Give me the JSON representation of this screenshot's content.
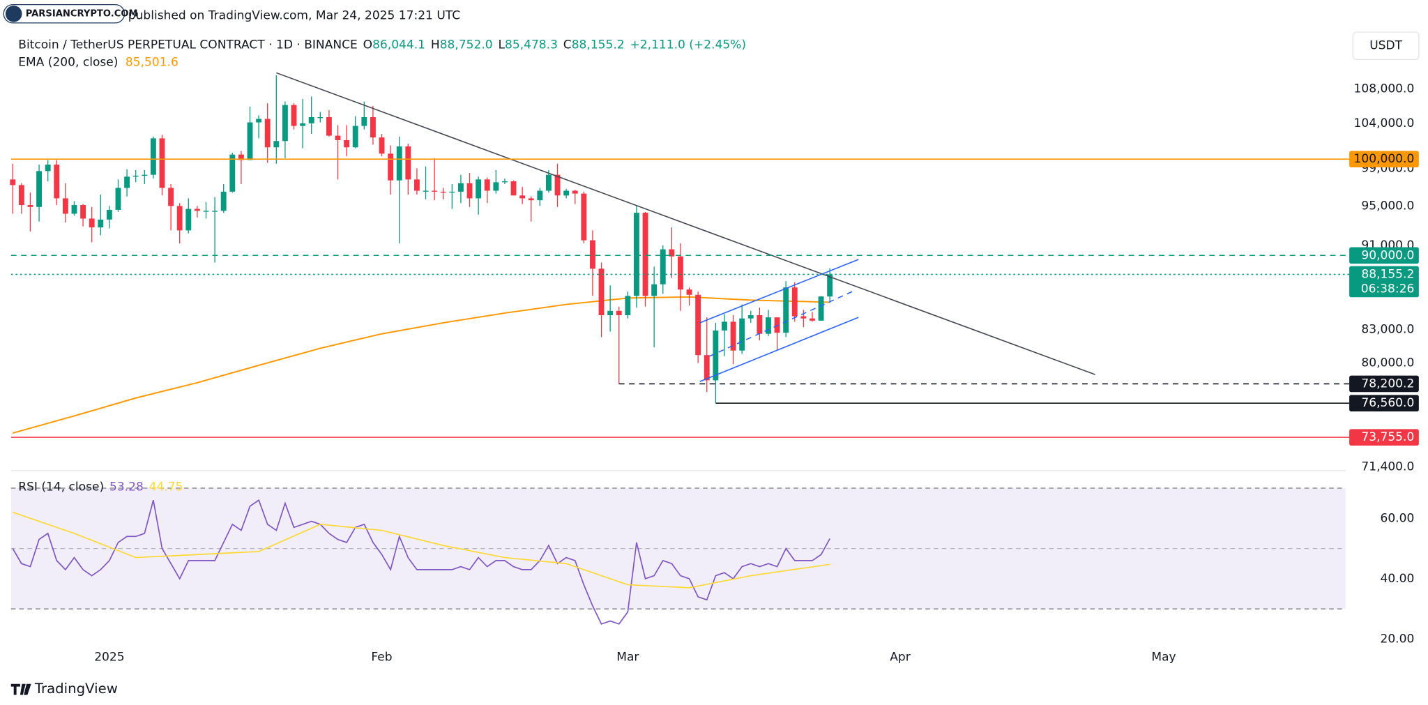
{
  "header": {
    "published": "published on TradingView.com, Mar 24, 2025 17:21 UTC",
    "logo": "PARSIANCRYPTO.COM",
    "footer": "TradingView"
  },
  "chart_data": [
    {
      "type": "candlestick",
      "title": "Bitcoin / TetherUS PERPETUAL CONTRACT · 1D · BINANCE",
      "ohlc_legend": [
        {
          "key": "O",
          "value": "86,044.1"
        },
        {
          "key": "H",
          "value": "88,752.0"
        },
        {
          "key": "L",
          "value": "85,478.3"
        },
        {
          "key": "C",
          "value": "88,155.2"
        }
      ],
      "change": "+2,111.0 (+2.45%)",
      "legend_color": "#089981",
      "currency": "USDT",
      "up_color": "#089981",
      "down_color": "#f23645",
      "log_scale": true,
      "grid": false,
      "xlim": [
        -0.2,
        151.7
      ],
      "ylim": [
        71260,
        115260
      ],
      "yticks": [
        {
          "value": 108000,
          "label": "108,000.0"
        },
        {
          "value": 104000,
          "label": "104,000.0"
        },
        {
          "value": 99000,
          "label": "99,000.0"
        },
        {
          "value": 95000,
          "label": "95,000.0"
        },
        {
          "value": 91000,
          "label": "91,000.0"
        },
        {
          "value": 83000,
          "label": "83,000.0"
        },
        {
          "value": 80000,
          "label": "80,000.0"
        },
        {
          "value": 71400,
          "label": "71,400.0"
        }
      ],
      "open": [
        97800,
        97200,
        95100,
        94900,
        98700,
        99400,
        95800,
        94200,
        95100,
        93700,
        92800,
        93600,
        94600,
        96900,
        98100,
        98200,
        98300,
        102300,
        96900,
        95000,
        92500,
        94700,
        94500,
        94500,
        94500,
        96500,
        100500,
        99900,
        104100,
        104500,
        101300,
        102000,
        106100,
        103700,
        104000,
        104700,
        104700,
        102600,
        102100,
        101300,
        103700,
        104700,
        102400,
        100600,
        97700,
        101400,
        97800,
        96600,
        96600,
        96500,
        96400,
        96500,
        97400,
        95800,
        97800,
        96600,
        97500,
        97600,
        96100,
        95800,
        95600,
        96600,
        98300,
        96100,
        96600,
        96300,
        91500,
        88700,
        84300,
        84700,
        84300,
        86100,
        94300,
        86100,
        87200,
        90600,
        89900,
        86700,
        86200,
        80700,
        78500,
        82900,
        83700,
        81100,
        84000,
        84300,
        82600,
        84100,
        82700,
        86900,
        84200,
        84000,
        83800,
        86044.1
      ],
      "high": [
        99500,
        97400,
        96400,
        99400,
        99900,
        99900,
        97400,
        95500,
        95200,
        94900,
        96200,
        95000,
        97800,
        98900,
        98800,
        98800,
        102500,
        102700,
        97300,
        95300,
        95800,
        95000,
        95400,
        95900,
        97300,
        100700,
        100900,
        105900,
        104900,
        106300,
        109600,
        106500,
        106300,
        106800,
        107100,
        105300,
        105500,
        103800,
        103800,
        104800,
        106500,
        106000,
        102800,
        101500,
        102500,
        101700,
        99000,
        99200,
        100100,
        96900,
        97300,
        98300,
        98500,
        98100,
        98000,
        98800,
        97900,
        97700,
        97000,
        96000,
        96900,
        98800,
        99500,
        96800,
        96700,
        96500,
        92500,
        89300,
        87100,
        85100,
        86500,
        95000,
        94400,
        88900,
        91000,
        92800,
        91200,
        86900,
        86500,
        84100,
        83600,
        84400,
        84300,
        85300,
        84700,
        85000,
        84800,
        84100,
        87500,
        87400,
        84800,
        84600,
        86100,
        88752
      ],
      "low": [
        94200,
        94200,
        92400,
        93400,
        97600,
        95100,
        93300,
        94000,
        92900,
        91300,
        92000,
        92700,
        94400,
        96000,
        97500,
        97300,
        97900,
        96100,
        92500,
        91200,
        92200,
        93800,
        93700,
        89300,
        94300,
        96400,
        97300,
        99900,
        102300,
        99600,
        99500,
        100100,
        103300,
        101200,
        102800,
        104100,
        102500,
        97800,
        100300,
        101200,
        103300,
        101600,
        100300,
        96200,
        91200,
        96200,
        96200,
        95700,
        95600,
        95700,
        94700,
        95300,
        94900,
        94100,
        95300,
        96300,
        97300,
        96100,
        95200,
        93400,
        95000,
        96400,
        94900,
        95800,
        95200,
        91200,
        86100,
        82300,
        82800,
        78200,
        84000,
        85000,
        85100,
        81400,
        86300,
        87800,
        84700,
        85200,
        80000,
        77500,
        76600,
        80600,
        79900,
        80800,
        83600,
        82000,
        82400,
        81100,
        82300,
        83700,
        83200,
        83700,
        83800,
        85478.3
      ],
      "close": [
        97200,
        95100,
        94900,
        98700,
        99400,
        95800,
        94200,
        95100,
        93700,
        92800,
        93600,
        94600,
        96900,
        98100,
        98200,
        98300,
        102300,
        96900,
        95000,
        92500,
        94700,
        94500,
        94500,
        94500,
        96500,
        100500,
        99900,
        104100,
        104500,
        101300,
        102000,
        106100,
        103700,
        104000,
        104700,
        104700,
        102600,
        102100,
        101300,
        103700,
        104700,
        102400,
        100600,
        97700,
        101400,
        97800,
        96600,
        96600,
        96500,
        96400,
        96500,
        97400,
        95800,
        97800,
        96600,
        97500,
        97600,
        96100,
        95800,
        95600,
        96600,
        98300,
        96100,
        96600,
        96300,
        91500,
        88700,
        84300,
        84700,
        84300,
        86100,
        94300,
        86100,
        87200,
        90600,
        89900,
        86700,
        86200,
        80700,
        78500,
        82900,
        83700,
        81100,
        84000,
        84300,
        82600,
        84100,
        82700,
        86900,
        84200,
        84000,
        83800,
        86044.1,
        88155.2
      ],
      "series": [
        {
          "name": "EMA (200, close)",
          "color": "#ff9800",
          "last_label": "85,501.6",
          "x": [
            0,
            7,
            14,
            21,
            28,
            35,
            42,
            49,
            56,
            63,
            70,
            77,
            84,
            93
          ],
          "values": [
            74100,
            75500,
            77000,
            78300,
            79800,
            81300,
            82600,
            83600,
            84500,
            85300,
            85900,
            86000,
            85700,
            85501.6
          ]
        }
      ],
      "lines": [
        {
          "color": "#434651",
          "dash": false,
          "x": [
            30,
            123.2
          ],
          "values": [
            109900,
            79000
          ]
        },
        {
          "color": "#2962ff",
          "dash": false,
          "x": [
            78.2,
            96.25
          ],
          "values": [
            83600,
            89600
          ]
        },
        {
          "color": "#2962ff",
          "dash": false,
          "x": [
            78.2,
            96.25
          ],
          "values": [
            78400,
            84100
          ]
        },
        {
          "color": "#2962ff",
          "dash": true,
          "x": [
            79.3,
            95.8
          ],
          "values": [
            80600,
            86600
          ]
        }
      ],
      "levels": [
        {
          "value": 100000,
          "label": "100,000.0",
          "color": "#ff9800",
          "text_color": "#131722",
          "style": "solid"
        },
        {
          "value": 90000,
          "label": "90,000.0",
          "color": "#089981",
          "text_color": "#ffffff",
          "style": "dashed"
        },
        {
          "value": 88155.2,
          "label": "88,155.2",
          "countdown": "06:38:26",
          "color": "#089981",
          "text_color": "#ffffff",
          "style": "dotted"
        },
        {
          "value": 78200.2,
          "label": "78,200.2",
          "color": "#131722",
          "text_color": "#ffffff",
          "style": "dashed",
          "x_from": 69
        },
        {
          "value": 76560,
          "label": "76,560.0",
          "color": "#131722",
          "text_color": "#ffffff",
          "style": "solid",
          "x_from": 80
        },
        {
          "value": 73755,
          "label": "73,755.0",
          "color": "#f23645",
          "text_color": "#ffffff",
          "style": "solid"
        }
      ]
    },
    {
      "type": "line",
      "title": "RSI (14, close)",
      "xlim": [
        -0.2,
        151.7
      ],
      "ylim": [
        17.9,
        75.5
      ],
      "xticks": [
        {
          "value": 11,
          "label": "2025"
        },
        {
          "value": 42,
          "label": "Feb"
        },
        {
          "value": 70,
          "label": "Mar"
        },
        {
          "value": 101,
          "label": "Apr"
        },
        {
          "value": 131,
          "label": "May"
        }
      ],
      "yticks": [
        {
          "value": 20,
          "label": "20.00"
        },
        {
          "value": 40,
          "label": "40.00"
        },
        {
          "value": 60,
          "label": "60.00"
        }
      ],
      "band": [
        30,
        70
      ],
      "midline": 50,
      "band_color": "rgba(126,87,194,0.1)",
      "series": [
        {
          "color": "#7e57c2",
          "last_label": "53.28",
          "values": [
            50,
            45,
            44,
            53,
            55,
            46,
            43,
            47,
            43,
            41,
            43,
            46,
            52,
            54,
            54,
            55,
            66,
            50,
            45,
            40,
            46,
            46,
            46,
            46,
            52,
            58,
            56,
            64,
            66,
            58,
            56,
            65,
            57,
            58,
            59,
            58,
            55,
            53,
            52,
            57,
            58,
            52,
            48,
            43,
            54,
            47,
            43,
            43,
            43,
            43,
            43,
            44,
            43,
            47,
            44,
            46,
            46,
            44,
            43,
            43,
            46,
            51,
            45,
            47,
            46,
            38,
            31,
            25,
            26,
            25,
            29,
            52,
            40,
            41,
            46,
            45,
            41,
            40,
            34,
            33,
            41,
            42,
            40,
            44,
            45,
            44,
            45,
            44,
            50,
            46,
            46,
            46,
            48,
            53.28
          ]
        },
        {
          "color": "#fdd835",
          "last_label": "44.75",
          "x": [
            0,
            7,
            14,
            21,
            28,
            35,
            42,
            49,
            56,
            63,
            70,
            77,
            84,
            93
          ],
          "values": [
            62,
            55,
            47,
            48,
            49,
            58,
            56,
            51,
            47,
            45,
            38,
            37,
            41,
            44.75
          ]
        }
      ]
    }
  ]
}
